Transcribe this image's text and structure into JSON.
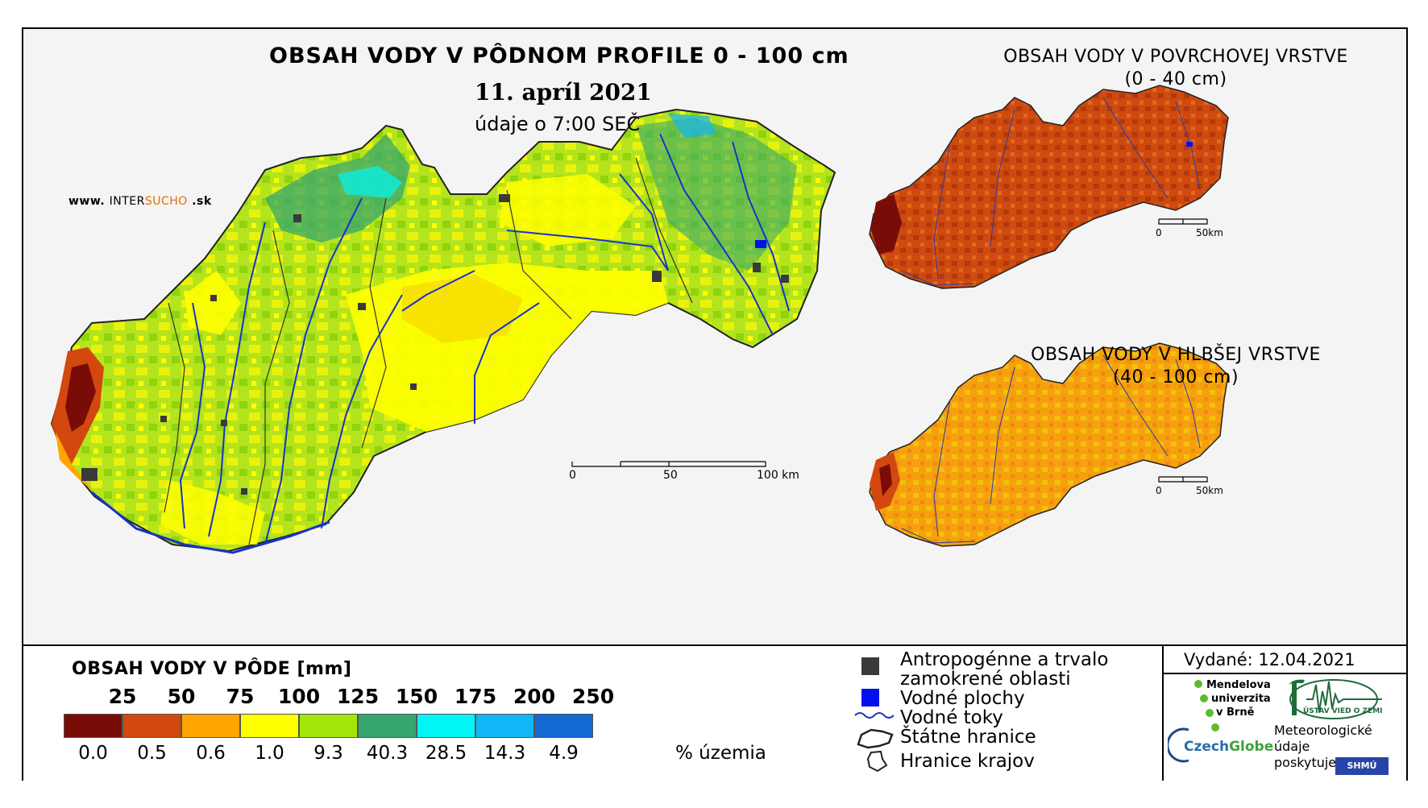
{
  "title": "OBSAH VODY V PÔDNOM PROFILE 0 - 100 cm",
  "date": "11. apríl 2021",
  "time_note": "údaje o 7:00 SEČ",
  "website": {
    "prefix": "www.",
    "brand_a": "INTER",
    "brand_b": "SUCHO",
    "suffix": ".sk"
  },
  "inset_top": {
    "title_line1": "OBSAH VODY V POVRCHOVEJ VRSTVE",
    "title_line2": "(0 - 40 cm)"
  },
  "inset_bottom": {
    "title_line1": "OBSAH VODY V HLBŠEJ VRSTVE",
    "title_line2": "(40 - 100 cm)"
  },
  "scale_main": {
    "l0": "0",
    "l1": "50",
    "l2": "100 km"
  },
  "scale_inset_top": {
    "l0": "0",
    "l1": "50km"
  },
  "scale_inset_bottom": {
    "l0": "0",
    "l1": "50km"
  },
  "legend": {
    "title": "OBSAH VODY V PÔDE [mm]",
    "unit": "% územia",
    "classes": [
      {
        "upper": "25",
        "share": "0.0",
        "color": "#7a0c08"
      },
      {
        "upper": "50",
        "share": "0.5",
        "color": "#d2480e"
      },
      {
        "upper": "75",
        "share": "0.6",
        "color": "#ffa500"
      },
      {
        "upper": "100",
        "share": "1.0",
        "color": "#ffff00"
      },
      {
        "upper": "125",
        "share": "9.3",
        "color": "#a2e60a"
      },
      {
        "upper": "150",
        "share": "40.3",
        "color": "#37a56e"
      },
      {
        "upper": "175",
        "share": "28.5",
        "color": "#00f5f5"
      },
      {
        "upper": "200",
        "share": "14.3",
        "color": "#12b5f5"
      },
      {
        "upper": "250",
        "share": "4.9",
        "color": "#1468d2"
      }
    ]
  },
  "map_legend": {
    "urban_line1": "Antropogénne a trvalo",
    "urban_line2": "zamokrené oblasti",
    "water_bodies": "Vodné plochy",
    "rivers": "Vodné toky",
    "state_border": "Štátne hranice",
    "region_border": "Hranice krajov"
  },
  "issued": "Vydané: 12.04.2021",
  "credits": {
    "mendel_1": "Mendelova",
    "mendel_2": "univerzita",
    "mendel_3": "v Brně",
    "czechglobe_a": "Czech",
    "czechglobe_b": "Globe",
    "met_1": "Meteorologické",
    "met_2": "údaje",
    "met_3": "poskytuje:",
    "shmu": "SHMÚ",
    "uvz": "ÚSTAV VIED O ZEMI"
  },
  "colors": {
    "urban": "#3a3a3a",
    "water": "#0011ee",
    "river": "#1833c8",
    "border": "#222222"
  }
}
